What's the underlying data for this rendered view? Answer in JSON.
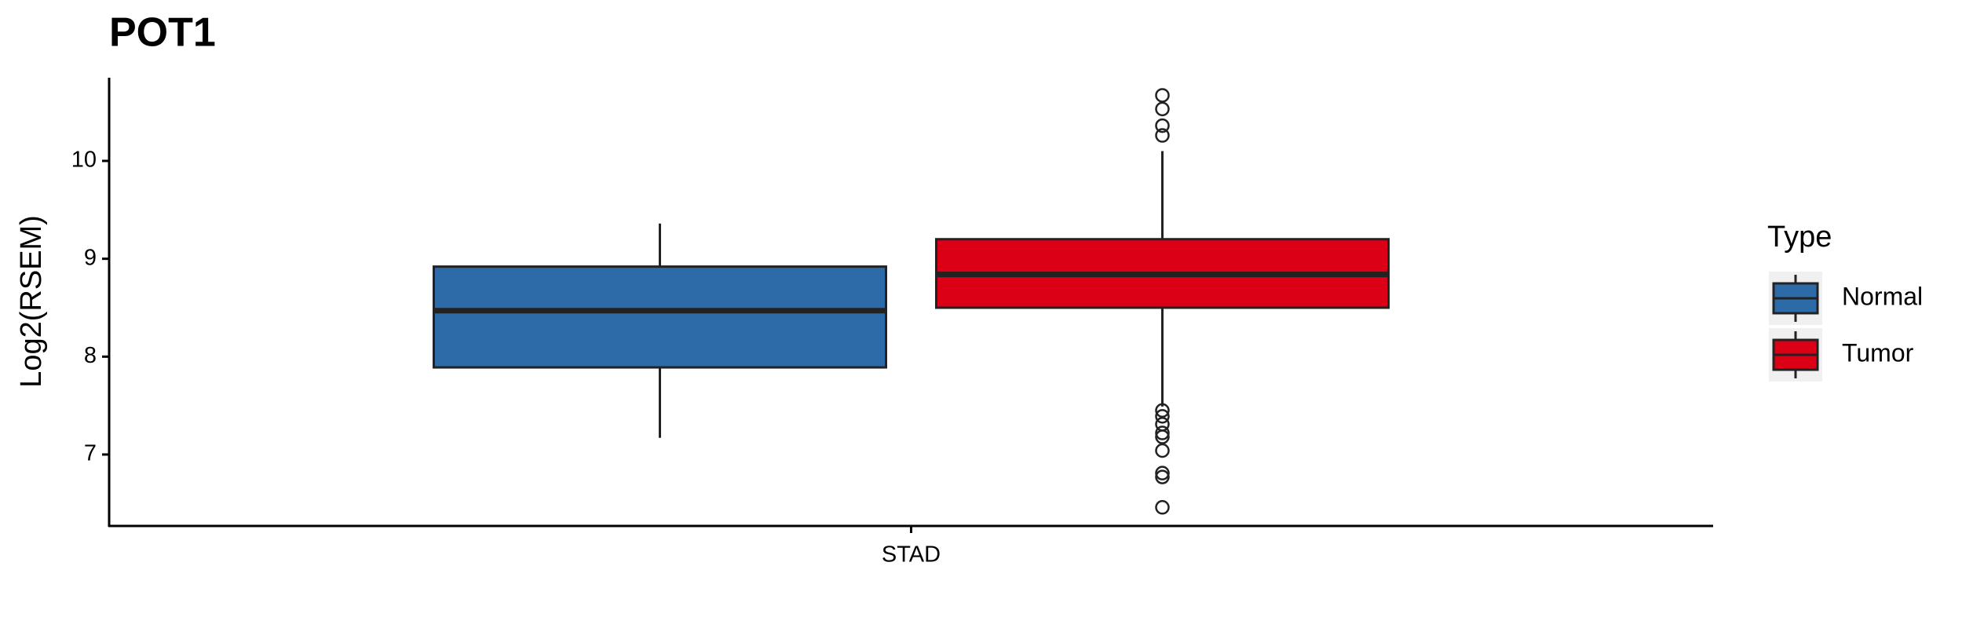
{
  "chart_data": {
    "type": "box",
    "title": "POT1",
    "y_label": "Log2(RSEM)",
    "categories": [
      "STAD"
    ],
    "legend_title": "Type",
    "ylim": [
      6.27,
      10.85
    ],
    "yticks": [
      7,
      8,
      9,
      10
    ],
    "series": [
      {
        "name": "Normal",
        "color": "#2c6aa8",
        "min": 7.17,
        "q1": 7.89,
        "median": 8.47,
        "q3": 8.92,
        "max": 9.36,
        "outliers": []
      },
      {
        "name": "Tumor",
        "color": "#db0016",
        "min": 7.49,
        "q1": 8.5,
        "median": 8.84,
        "q3": 9.2,
        "max": 10.1,
        "outliers": [
          10.67,
          10.53,
          10.36,
          10.26,
          7.45,
          7.39,
          7.31,
          7.22,
          7.18,
          7.04,
          6.81,
          6.77,
          6.46
        ]
      }
    ]
  }
}
